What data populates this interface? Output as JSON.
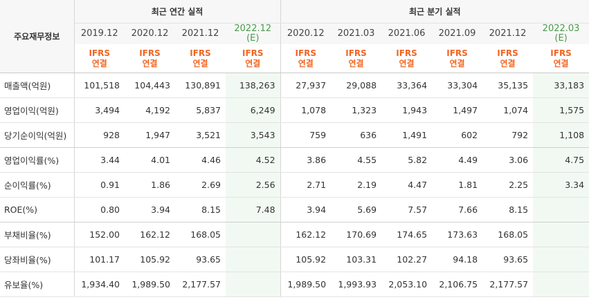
{
  "header": {
    "corner_label": "주요재무정보",
    "annual_group_label": "최근 연간 실적",
    "quarterly_group_label": "최근 분기 실적",
    "periods": [
      {
        "label": "2019.12",
        "sub": "",
        "estimate": false
      },
      {
        "label": "2020.12",
        "sub": "",
        "estimate": false
      },
      {
        "label": "2021.12",
        "sub": "",
        "estimate": false
      },
      {
        "label": "2022.12",
        "sub": "(E)",
        "estimate": true
      },
      {
        "label": "2020.12",
        "sub": "",
        "estimate": false
      },
      {
        "label": "2021.03",
        "sub": "",
        "estimate": false
      },
      {
        "label": "2021.06",
        "sub": "",
        "estimate": false
      },
      {
        "label": "2021.09",
        "sub": "",
        "estimate": false
      },
      {
        "label": "2021.12",
        "sub": "",
        "estimate": false
      },
      {
        "label": "2022.03",
        "sub": "(E)",
        "estimate": true
      }
    ],
    "ifrs_line1": "IFRS",
    "ifrs_line2": "연결"
  },
  "rows": [
    {
      "label": "매출액(억원)",
      "values": [
        "101,518",
        "104,443",
        "130,891",
        "138,263",
        "27,937",
        "29,088",
        "33,364",
        "33,304",
        "35,135",
        "33,183"
      ]
    },
    {
      "label": "영업이익(억원)",
      "values": [
        "3,494",
        "4,192",
        "5,837",
        "6,249",
        "1,078",
        "1,323",
        "1,943",
        "1,497",
        "1,074",
        "1,575"
      ]
    },
    {
      "label": "당기순이익(억원)",
      "values": [
        "928",
        "1,947",
        "3,521",
        "3,543",
        "759",
        "636",
        "1,491",
        "602",
        "792",
        "1,108"
      ]
    },
    {
      "label": "영업이익률(%)",
      "values": [
        "3.44",
        "4.01",
        "4.46",
        "4.52",
        "3.86",
        "4.55",
        "5.82",
        "4.49",
        "3.06",
        "4.75"
      ]
    },
    {
      "label": "순이익률(%)",
      "values": [
        "0.91",
        "1.86",
        "2.69",
        "2.56",
        "2.71",
        "2.19",
        "4.47",
        "1.81",
        "2.25",
        "3.34"
      ]
    },
    {
      "label": "ROE(%)",
      "values": [
        "0.80",
        "3.94",
        "8.15",
        "7.48",
        "3.94",
        "5.69",
        "7.57",
        "7.66",
        "8.15",
        ""
      ]
    },
    {
      "label": "부채비율(%)",
      "values": [
        "152.00",
        "162.12",
        "168.05",
        "",
        "162.12",
        "170.69",
        "174.65",
        "173.63",
        "168.05",
        ""
      ]
    },
    {
      "label": "당좌비율(%)",
      "values": [
        "101.17",
        "105.92",
        "93.65",
        "",
        "105.92",
        "103.31",
        "102.27",
        "94.18",
        "93.65",
        ""
      ]
    },
    {
      "label": "유보율(%)",
      "values": [
        "1,934.40",
        "1,989.50",
        "2,177.57",
        "",
        "1,989.50",
        "1,993.93",
        "2,053.10",
        "2,106.75",
        "2,177.57",
        ""
      ]
    }
  ]
}
